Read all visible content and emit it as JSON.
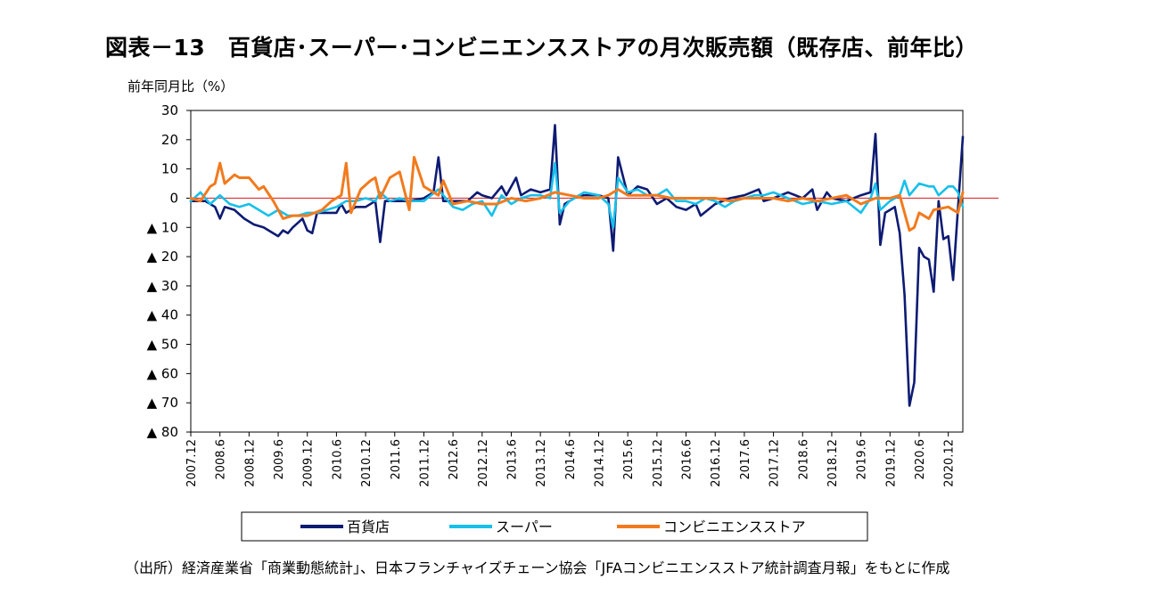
{
  "title": "図表－13　百貨店･スーパー･コンビニエンスストアの月次販売額（既存店、前年比）",
  "ylabel": "前年同月比（%）",
  "source": "（出所）経済産業省「商業動態統計」、日本フランチャイズチェーン協会「JFAコンビニエンスストア統計調査月報」をもとに作成",
  "chart_data": {
    "type": "line",
    "ylim": [
      -80,
      30
    ],
    "yticks": [
      30,
      20,
      10,
      0,
      -10,
      -20,
      -30,
      -40,
      -50,
      -60,
      -70,
      -80
    ],
    "ytick_labels": [
      "30",
      "20",
      "10",
      "0",
      "▲ 10",
      "▲ 20",
      "▲ 30",
      "▲ 40",
      "▲ 50",
      "▲ 60",
      "▲ 70",
      "▲ 80"
    ],
    "x_start": "2007.12",
    "x_end": "2021.3",
    "x_tick_labels": [
      "2007.12",
      "2008.6",
      "2008.12",
      "2009.6",
      "2009.12",
      "2010.6",
      "2010.12",
      "2011.6",
      "2011.12",
      "2012.6",
      "2012.12",
      "2013.6",
      "2013.12",
      "2014.6",
      "2014.12",
      "2015.6",
      "2015.12",
      "2016.6",
      "2016.12",
      "2017.6",
      "2017.12",
      "2018.6",
      "2018.12",
      "2019.6",
      "2019.12",
      "2020.6",
      "2020.12"
    ],
    "reference_line": 0,
    "grid": false,
    "legend_position": "bottom",
    "series": [
      {
        "name": "百貨店",
        "color": "#0d1b73",
        "points": [
          [
            "2007.12",
            -1
          ],
          [
            "2008.3",
            -1
          ],
          [
            "2008.5",
            -3
          ],
          [
            "2008.6",
            -7
          ],
          [
            "2008.7",
            -3
          ],
          [
            "2008.9",
            -4
          ],
          [
            "2008.11",
            -7
          ],
          [
            "2009.1",
            -9
          ],
          [
            "2009.3",
            -10
          ],
          [
            "2009.6",
            -13
          ],
          [
            "2009.7",
            -11
          ],
          [
            "2009.8",
            -12
          ],
          [
            "2009.9",
            -10
          ],
          [
            "2009.11",
            -7
          ],
          [
            "2009.12",
            -11
          ],
          [
            "2010.1",
            -12
          ],
          [
            "2010.2",
            -5
          ],
          [
            "2010.4",
            -5
          ],
          [
            "2010.6",
            -5
          ],
          [
            "2010.7",
            -2
          ],
          [
            "2010.8",
            -5
          ],
          [
            "2010.10",
            -3
          ],
          [
            "2010.12",
            -3
          ],
          [
            "2011.2",
            -1
          ],
          [
            "2011.3",
            -15
          ],
          [
            "2011.4",
            -1
          ],
          [
            "2011.6",
            -1
          ],
          [
            "2011.9",
            -1
          ],
          [
            "2011.12",
            0
          ],
          [
            "2012.2",
            2
          ],
          [
            "2012.3",
            14
          ],
          [
            "2012.4",
            -1
          ],
          [
            "2012.6",
            -1
          ],
          [
            "2012.9",
            -1
          ],
          [
            "2012.11",
            2
          ],
          [
            "2012.12",
            1
          ],
          [
            "2013.2",
            0
          ],
          [
            "2013.4",
            4
          ],
          [
            "2013.5",
            1
          ],
          [
            "2013.7",
            7
          ],
          [
            "2013.8",
            1
          ],
          [
            "2013.10",
            3
          ],
          [
            "2013.12",
            2
          ],
          [
            "2014.2",
            3
          ],
          [
            "2014.3",
            25
          ],
          [
            "2014.4",
            -9
          ],
          [
            "2014.5",
            -2
          ],
          [
            "2014.8",
            1
          ],
          [
            "2014.10",
            1
          ],
          [
            "2014.12",
            1
          ],
          [
            "2015.2",
            0
          ],
          [
            "2015.3",
            -18
          ],
          [
            "2015.4",
            14
          ],
          [
            "2015.6",
            1
          ],
          [
            "2015.8",
            4
          ],
          [
            "2015.10",
            3
          ],
          [
            "2015.12",
            -2
          ],
          [
            "2016.2",
            0
          ],
          [
            "2016.4",
            -3
          ],
          [
            "2016.6",
            -4
          ],
          [
            "2016.8",
            -2
          ],
          [
            "2016.9",
            -6
          ],
          [
            "2016.12",
            -2
          ],
          [
            "2017.3",
            0
          ],
          [
            "2017.6",
            1
          ],
          [
            "2017.9",
            3
          ],
          [
            "2017.10",
            -1
          ],
          [
            "2017.12",
            0
          ],
          [
            "2018.3",
            2
          ],
          [
            "2018.6",
            0
          ],
          [
            "2018.8",
            3
          ],
          [
            "2018.9",
            -4
          ],
          [
            "2018.11",
            2
          ],
          [
            "2018.12",
            0
          ],
          [
            "2019.3",
            -1
          ],
          [
            "2019.6",
            1
          ],
          [
            "2019.8",
            2
          ],
          [
            "2019.9",
            22
          ],
          [
            "2019.10",
            -16
          ],
          [
            "2019.11",
            -5
          ],
          [
            "2019.12",
            -4
          ],
          [
            "2020.1",
            -3
          ],
          [
            "2020.2",
            -12
          ],
          [
            "2020.3",
            -33
          ],
          [
            "2020.4",
            -71
          ],
          [
            "2020.5",
            -63
          ],
          [
            "2020.6",
            -17
          ],
          [
            "2020.7",
            -20
          ],
          [
            "2020.8",
            -21
          ],
          [
            "2020.9",
            -32
          ],
          [
            "2020.10",
            -1
          ],
          [
            "2020.11",
            -14
          ],
          [
            "2020.12",
            -13
          ],
          [
            "2021.1",
            -28
          ],
          [
            "2021.3",
            21
          ]
        ]
      },
      {
        "name": "スーパー",
        "color": "#17c0ea",
        "points": [
          [
            "2007.12",
            -1
          ],
          [
            "2008.2",
            2
          ],
          [
            "2008.4",
            -2
          ],
          [
            "2008.6",
            1
          ],
          [
            "2008.8",
            -2
          ],
          [
            "2008.10",
            -3
          ],
          [
            "2008.12",
            -2
          ],
          [
            "2009.2",
            -4
          ],
          [
            "2009.4",
            -6
          ],
          [
            "2009.6",
            -4
          ],
          [
            "2009.8",
            -6
          ],
          [
            "2009.10",
            -6
          ],
          [
            "2009.12",
            -5
          ],
          [
            "2010.2",
            -5
          ],
          [
            "2010.4",
            -4
          ],
          [
            "2010.6",
            -3
          ],
          [
            "2010.8",
            -1
          ],
          [
            "2010.10",
            -1
          ],
          [
            "2010.12",
            0
          ],
          [
            "2011.2",
            -1
          ],
          [
            "2011.3",
            2
          ],
          [
            "2011.5",
            -1
          ],
          [
            "2011.7",
            0
          ],
          [
            "2011.9",
            -1
          ],
          [
            "2011.12",
            -1
          ],
          [
            "2012.3",
            3
          ],
          [
            "2012.6",
            -3
          ],
          [
            "2012.8",
            -4
          ],
          [
            "2012.10",
            -2
          ],
          [
            "2012.12",
            -1
          ],
          [
            "2013.2",
            -6
          ],
          [
            "2013.4",
            1
          ],
          [
            "2013.6",
            -2
          ],
          [
            "2013.8",
            0
          ],
          [
            "2013.10",
            1
          ],
          [
            "2013.12",
            1
          ],
          [
            "2014.2",
            0
          ],
          [
            "2014.3",
            12
          ],
          [
            "2014.4",
            -5
          ],
          [
            "2014.6",
            -1
          ],
          [
            "2014.9",
            2
          ],
          [
            "2014.12",
            1
          ],
          [
            "2015.2",
            -2
          ],
          [
            "2015.3",
            -10
          ],
          [
            "2015.4",
            7
          ],
          [
            "2015.6",
            2
          ],
          [
            "2015.8",
            3
          ],
          [
            "2015.10",
            1
          ],
          [
            "2015.12",
            1
          ],
          [
            "2016.2",
            3
          ],
          [
            "2016.4",
            -1
          ],
          [
            "2016.6",
            -1
          ],
          [
            "2016.8",
            -2
          ],
          [
            "2016.10",
            0
          ],
          [
            "2016.12",
            -1
          ],
          [
            "2017.2",
            -3
          ],
          [
            "2017.4",
            -1
          ],
          [
            "2017.6",
            0
          ],
          [
            "2017.8",
            1
          ],
          [
            "2017.10",
            1
          ],
          [
            "2017.12",
            2
          ],
          [
            "2018.3",
            0
          ],
          [
            "2018.6",
            -2
          ],
          [
            "2018.9",
            -1
          ],
          [
            "2018.12",
            -2
          ],
          [
            "2019.3",
            -1
          ],
          [
            "2019.6",
            -5
          ],
          [
            "2019.8",
            0
          ],
          [
            "2019.9",
            5
          ],
          [
            "2019.10",
            -4
          ],
          [
            "2019.12",
            -1
          ],
          [
            "2020.2",
            1
          ],
          [
            "2020.3",
            6
          ],
          [
            "2020.4",
            1
          ],
          [
            "2020.6",
            5
          ],
          [
            "2020.8",
            4
          ],
          [
            "2020.9",
            4
          ],
          [
            "2020.10",
            1
          ],
          [
            "2020.12",
            4
          ],
          [
            "2021.1",
            4
          ],
          [
            "2021.2",
            2
          ],
          [
            "2021.3",
            -3
          ]
        ]
      },
      {
        "name": "コンビニエンスストア",
        "color": "#f27a1d",
        "points": [
          [
            "2007.12",
            0
          ],
          [
            "2008.2",
            -1
          ],
          [
            "2008.4",
            4
          ],
          [
            "2008.5",
            5
          ],
          [
            "2008.6",
            12
          ],
          [
            "2008.7",
            5
          ],
          [
            "2008.9",
            8
          ],
          [
            "2008.10",
            7
          ],
          [
            "2008.12",
            7
          ],
          [
            "2009.2",
            3
          ],
          [
            "2009.3",
            4
          ],
          [
            "2009.5",
            -1
          ],
          [
            "2009.7",
            -7
          ],
          [
            "2009.9",
            -6
          ],
          [
            "2009.12",
            -6
          ],
          [
            "2010.3",
            -4
          ],
          [
            "2010.5",
            -1
          ],
          [
            "2010.7",
            1
          ],
          [
            "2010.8",
            12
          ],
          [
            "2010.9",
            -5
          ],
          [
            "2010.11",
            3
          ],
          [
            "2011.1",
            6
          ],
          [
            "2011.2",
            7
          ],
          [
            "2011.3",
            0
          ],
          [
            "2011.5",
            7
          ],
          [
            "2011.7",
            9
          ],
          [
            "2011.9",
            -4
          ],
          [
            "2011.10",
            14
          ],
          [
            "2011.12",
            4
          ],
          [
            "2012.3",
            1
          ],
          [
            "2012.4",
            6
          ],
          [
            "2012.6",
            -2
          ],
          [
            "2012.9",
            -1
          ],
          [
            "2012.12",
            -2
          ],
          [
            "2013.3",
            -2
          ],
          [
            "2013.6",
            0
          ],
          [
            "2013.9",
            -1
          ],
          [
            "2013.12",
            0
          ],
          [
            "2014.3",
            2
          ],
          [
            "2014.6",
            1
          ],
          [
            "2014.9",
            0
          ],
          [
            "2014.12",
            0
          ],
          [
            "2015.2",
            1
          ],
          [
            "2015.4",
            3
          ],
          [
            "2015.6",
            1
          ],
          [
            "2015.9",
            1
          ],
          [
            "2015.12",
            1
          ],
          [
            "2016.3",
            0
          ],
          [
            "2016.6",
            0
          ],
          [
            "2016.9",
            0
          ],
          [
            "2016.12",
            0
          ],
          [
            "2017.3",
            -1
          ],
          [
            "2017.6",
            0
          ],
          [
            "2017.9",
            0
          ],
          [
            "2017.12",
            0
          ],
          [
            "2018.3",
            -1
          ],
          [
            "2018.6",
            0
          ],
          [
            "2018.9",
            -1
          ],
          [
            "2018.12",
            0
          ],
          [
            "2019.3",
            1
          ],
          [
            "2019.6",
            -2
          ],
          [
            "2019.9",
            0
          ],
          [
            "2019.12",
            0
          ],
          [
            "2020.2",
            1
          ],
          [
            "2020.3",
            -5
          ],
          [
            "2020.4",
            -11
          ],
          [
            "2020.5",
            -10
          ],
          [
            "2020.6",
            -5
          ],
          [
            "2020.8",
            -7
          ],
          [
            "2020.9",
            -4
          ],
          [
            "2020.12",
            -3
          ],
          [
            "2021.1",
            -4
          ],
          [
            "2021.2",
            -5
          ],
          [
            "2021.3",
            2
          ]
        ]
      }
    ]
  }
}
